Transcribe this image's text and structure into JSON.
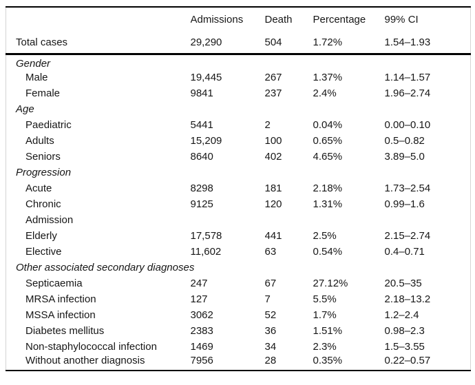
{
  "table": {
    "columns": {
      "label": "",
      "admissions": "Admissions",
      "death": "Death",
      "percentage": "Percentage",
      "ci": "99% CI"
    },
    "rows": [
      {
        "type": "total",
        "label": "Total cases",
        "admissions": "29,290",
        "death": "504",
        "percentage": "1.72%",
        "ci": "1.54–1.93"
      },
      {
        "type": "section",
        "label": "Gender"
      },
      {
        "type": "data",
        "label": "Male",
        "admissions": "19,445",
        "death": "267",
        "percentage": "1.37%",
        "ci": "1.14–1.57"
      },
      {
        "type": "data",
        "label": "Female",
        "admissions": "9841",
        "death": "237",
        "percentage": "2.4%",
        "ci": "1.96–2.74"
      },
      {
        "type": "section",
        "label": "Age"
      },
      {
        "type": "data",
        "label": "Paediatric",
        "admissions": "5441",
        "death": "2",
        "percentage": "0.04%",
        "ci": "0.00–0.10"
      },
      {
        "type": "data",
        "label": "Adults",
        "admissions": "15,209",
        "death": "100",
        "percentage": "0.65%",
        "ci": "0.5–0.82"
      },
      {
        "type": "data",
        "label": "Seniors",
        "admissions": "8640",
        "death": "402",
        "percentage": "4.65%",
        "ci": "3.89–5.0"
      },
      {
        "type": "section",
        "label": "Progression"
      },
      {
        "type": "data",
        "label": "Acute",
        "admissions": "8298",
        "death": "181",
        "percentage": "2.18%",
        "ci": "1.73–2.54"
      },
      {
        "type": "data",
        "label": "Chronic",
        "admissions": "9125",
        "death": "120",
        "percentage": "1.31%",
        "ci": "0.99–1.6"
      },
      {
        "type": "data",
        "label": "Admission",
        "admissions": "",
        "death": "",
        "percentage": "",
        "ci": ""
      },
      {
        "type": "data",
        "label": "Elderly",
        "admissions": "17,578",
        "death": "441",
        "percentage": "2.5%",
        "ci": "2.15–2.74"
      },
      {
        "type": "data",
        "label": "Elective",
        "admissions": "11,602",
        "death": "63",
        "percentage": "0.54%",
        "ci": "0.4–0.71"
      },
      {
        "type": "section",
        "label": "Other associated secondary diagnoses"
      },
      {
        "type": "data",
        "label": "Septicaemia",
        "admissions": "247",
        "death": "67",
        "percentage": "27.12%",
        "ci": "20.5–35"
      },
      {
        "type": "data",
        "label": "MRSA infection",
        "admissions": "127",
        "death": "7",
        "percentage": "5.5%",
        "ci": "2.18–13.2"
      },
      {
        "type": "data",
        "label": "MSSA infection",
        "admissions": "3062",
        "death": "52",
        "percentage": "1.7%",
        "ci": "1.2–2.4"
      },
      {
        "type": "data",
        "label": "Diabetes mellitus",
        "admissions": "2383",
        "death": "36",
        "percentage": "1.51%",
        "ci": "0.98–2.3"
      },
      {
        "type": "data",
        "label": "Non-staphylococcal infection",
        "admissions": "1469",
        "death": "34",
        "percentage": "2.3%",
        "ci": "1.5–3.55"
      },
      {
        "type": "data",
        "label": "Without another diagnosis",
        "admissions": "7956",
        "death": "28",
        "percentage": "0.35%",
        "ci": "0.22–0.57"
      }
    ]
  }
}
